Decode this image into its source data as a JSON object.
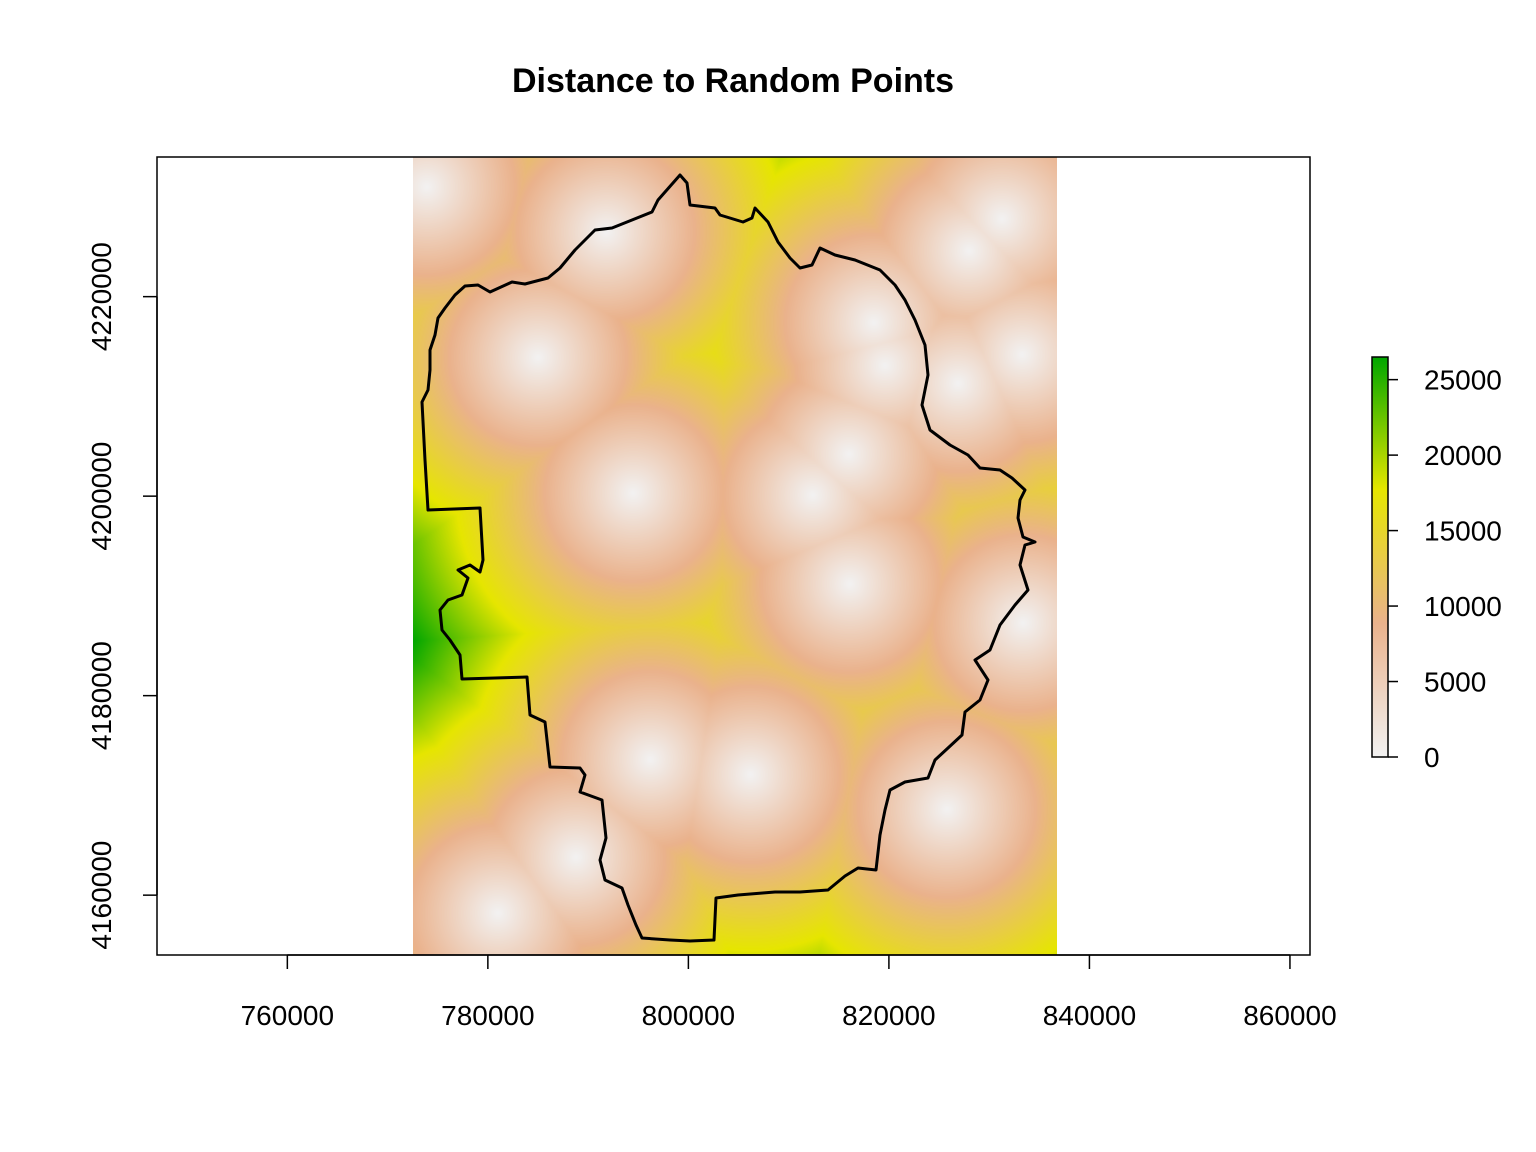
{
  "title": "Distance to Random Points",
  "chart_data": {
    "type": "heatmap",
    "title": "Distance to Random Points",
    "xlabel": "",
    "ylabel": "",
    "xlim": [
      747000,
      862000
    ],
    "ylim": [
      4154000,
      4234000
    ],
    "raster_extent": {
      "xmin": 772500,
      "xmax": 836800,
      "ymin": 4154000,
      "ymax": 4234000
    },
    "x_ticks": [
      {
        "value": 760000,
        "label": "760000"
      },
      {
        "value": 780000,
        "label": "780000"
      },
      {
        "value": 800000,
        "label": "800000"
      },
      {
        "value": 820000,
        "label": "820000"
      },
      {
        "value": 840000,
        "label": "840000"
      },
      {
        "value": 860000,
        "label": "860000"
      }
    ],
    "y_ticks": [
      {
        "value": 4160000,
        "label": "4160000"
      },
      {
        "value": 4180000,
        "label": "4180000"
      },
      {
        "value": 4200000,
        "label": "4200000"
      },
      {
        "value": 4220000,
        "label": "4220000"
      }
    ],
    "points": [
      [
        773900,
        4231000
      ],
      [
        791800,
        4226500
      ],
      [
        785000,
        4213900
      ],
      [
        794500,
        4200300
      ],
      [
        812400,
        4200100
      ],
      [
        816000,
        4204200
      ],
      [
        818500,
        4217400
      ],
      [
        819600,
        4213100
      ],
      [
        828000,
        4224600
      ],
      [
        831300,
        4227800
      ],
      [
        833300,
        4214200
      ],
      [
        826900,
        4211300
      ],
      [
        816100,
        4191200
      ],
      [
        833400,
        4187300
      ],
      [
        796200,
        4173600
      ],
      [
        806200,
        4172100
      ],
      [
        825800,
        4168600
      ],
      [
        788800,
        4163800
      ],
      [
        781000,
        4158200
      ]
    ],
    "legend": {
      "position": "right",
      "min": 0,
      "max": 26500,
      "ticks": [
        {
          "value": 0,
          "label": "0"
        },
        {
          "value": 5000,
          "label": "5000"
        },
        {
          "value": 10000,
          "label": "10000"
        },
        {
          "value": 15000,
          "label": "15000"
        },
        {
          "value": 20000,
          "label": "20000"
        },
        {
          "value": 25000,
          "label": "25000"
        }
      ],
      "colors": [
        "#f2f2f2",
        "#eab28c",
        "#e6e600",
        "#00a600"
      ]
    },
    "boundary_color": "#000000"
  }
}
